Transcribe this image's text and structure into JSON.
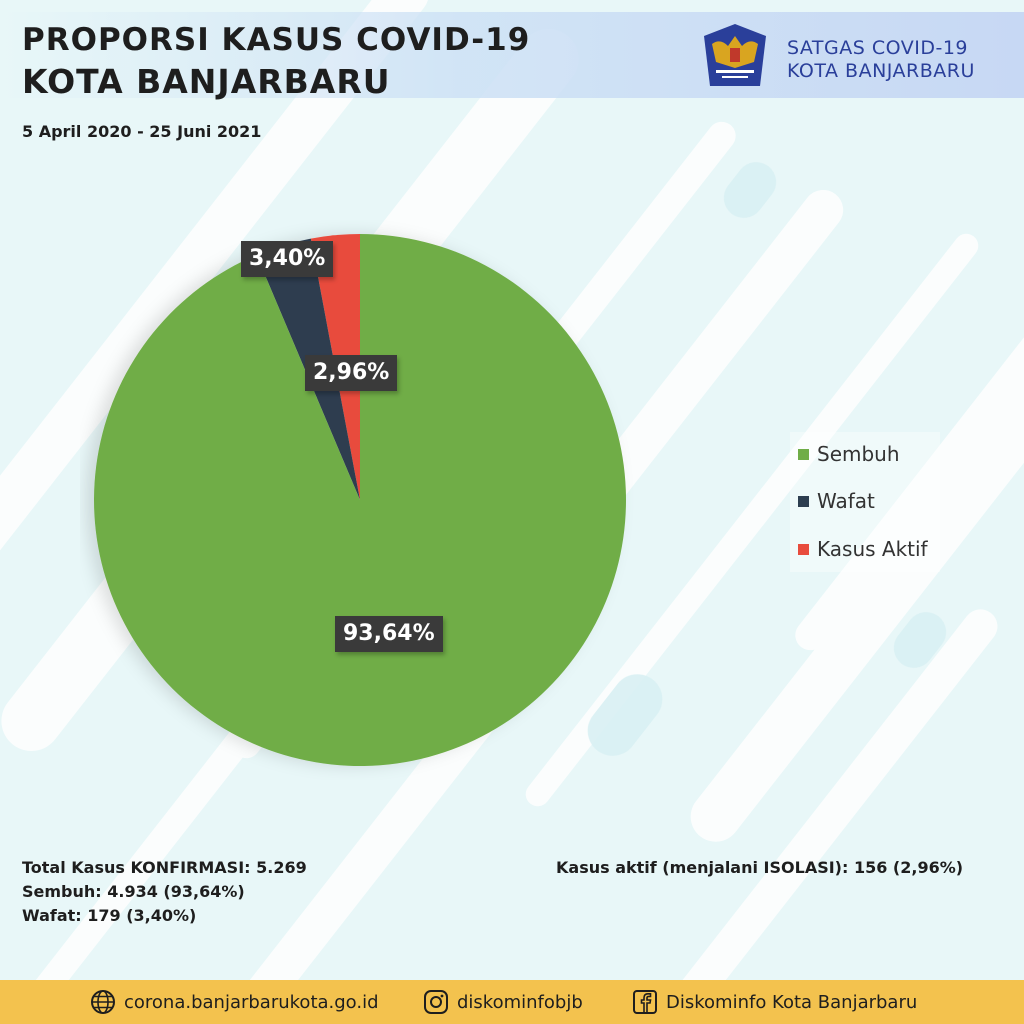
{
  "header": {
    "title_line1": "PROPORSI KASUS COVID-19",
    "title_line2": "KOTA BANJARBARU",
    "date_range": "5 April 2020 - 25 Juni 2021",
    "org_line1": "SATGAS COVID-19",
    "org_line2": "KOTA BANJARBARU",
    "logo_icon": "garuda-covid-task-force-logo-icon"
  },
  "chart_data": {
    "type": "pie",
    "title": "",
    "slices": [
      {
        "name": "Sembuh",
        "value": 93.64,
        "label": "93,64%",
        "color": "#70ad47"
      },
      {
        "name": "Wafat",
        "value": 3.4,
        "label": "3,40%",
        "color": "#2d3e50"
      },
      {
        "name": "Kasus Aktif",
        "value": 2.96,
        "label": "2,96%",
        "color": "#e84c3d"
      }
    ],
    "legend": [
      "Sembuh",
      "Wafat",
      "Kasus Aktif"
    ],
    "legend_position": "right"
  },
  "stats": {
    "total": "Total Kasus KONFIRMASI: 5.269",
    "sembuh": "Sembuh: 4.934 (93,64%)",
    "wafat": "Wafat: 179 (3,40%)",
    "aktif": "Kasus aktif (menjalani ISOLASI): 156 (2,96%)"
  },
  "footer": {
    "website": "corona.banjarbarukota.go.id",
    "instagram": "diskominfobjb",
    "facebook": "Diskominfo Kota Banjarbaru",
    "website_icon": "globe-icon",
    "instagram_icon": "instagram-icon",
    "facebook_icon": "facebook-icon"
  },
  "colors": {
    "footer_bg": "#f3c24e",
    "org_text": "#2a3f9a",
    "background": "#e8f7f8"
  }
}
